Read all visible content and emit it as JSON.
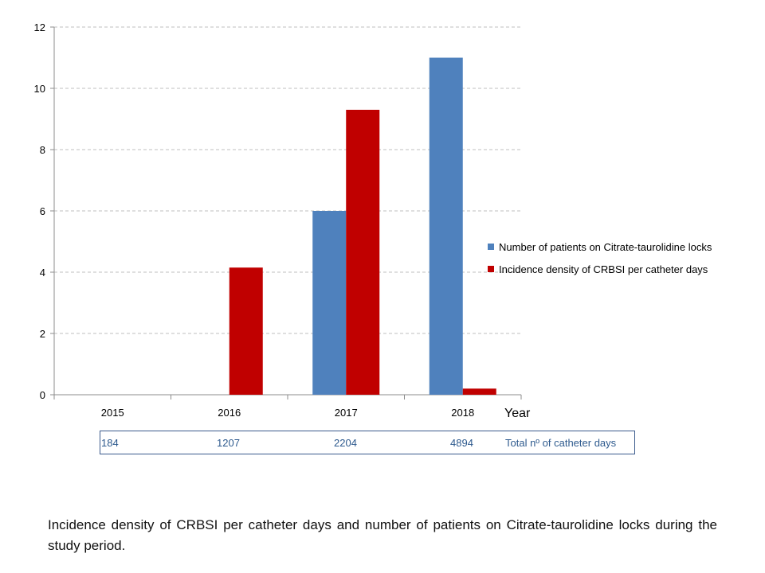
{
  "chart_data": {
    "type": "bar",
    "categories": [
      "2015",
      "2016",
      "2017",
      "2018"
    ],
    "series": [
      {
        "name": "Number of patients on Citrate-taurolidine locks",
        "values": [
          0,
          0,
          6,
          11
        ],
        "color": "#4f81bd"
      },
      {
        "name": "Incidence density of CRBSI per catheter days",
        "values": [
          0,
          4.15,
          9.3,
          0.2
        ],
        "color": "#c00000"
      }
    ],
    "xlabel": "Year",
    "ylabel": "",
    "ylim": [
      0,
      12
    ],
    "yticks": [
      "0",
      "2",
      "4",
      "6",
      "8",
      "10",
      "12"
    ],
    "grid": true,
    "legend_position": "right"
  },
  "catheter_days": {
    "values": [
      "184",
      "1207",
      "2204",
      "4894"
    ],
    "label": "Total nº of catheter days"
  },
  "caption": "Incidence density of CRBSI per catheter days and number of patients on Citrate-taurolidine locks during the study period."
}
